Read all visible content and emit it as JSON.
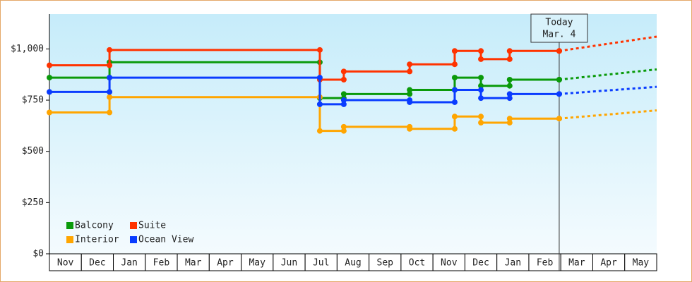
{
  "chart_data": {
    "type": "step-line",
    "today": {
      "x": 15.95,
      "label_top": "Today",
      "label_bottom": "Mar. 4"
    },
    "categories": [
      "Nov",
      "Dec",
      "Jan",
      "Feb",
      "Mar",
      "Apr",
      "May",
      "Jun",
      "Jul",
      "Aug",
      "Sep",
      "Oct",
      "Nov",
      "Dec",
      "Jan",
      "Feb",
      "Mar",
      "Apr",
      "May"
    ],
    "xlim": [
      0,
      19
    ],
    "ylim": [
      0,
      1170
    ],
    "yticks": [
      {
        "value": 0,
        "label": "$0"
      },
      {
        "value": 250,
        "label": "$250"
      },
      {
        "value": 500,
        "label": "$500"
      },
      {
        "value": 750,
        "label": "$750"
      },
      {
        "value": 1000,
        "label": "$1,000"
      }
    ],
    "x": [
      0,
      1.88,
      8.46,
      9.21,
      11.27,
      12.68,
      13.5,
      14.4,
      15.95,
      19
    ],
    "series": [
      {
        "name": "Balcony",
        "color": "#0a9a0a",
        "values": [
          860,
          935,
          760,
          780,
          800,
          860,
          820,
          850,
          850,
          900
        ]
      },
      {
        "name": "Suite",
        "color": "#ff3300",
        "values": [
          920,
          995,
          850,
          890,
          925,
          990,
          950,
          990,
          990,
          1060
        ]
      },
      {
        "name": "Interior",
        "color": "#ffa500",
        "values": [
          690,
          765,
          600,
          620,
          610,
          670,
          640,
          660,
          660,
          700
        ]
      },
      {
        "name": "Ocean View",
        "color": "#0a3cff",
        "values": [
          790,
          860,
          730,
          750,
          740,
          800,
          760,
          780,
          780,
          815
        ]
      }
    ],
    "legend": "bottom-left"
  }
}
